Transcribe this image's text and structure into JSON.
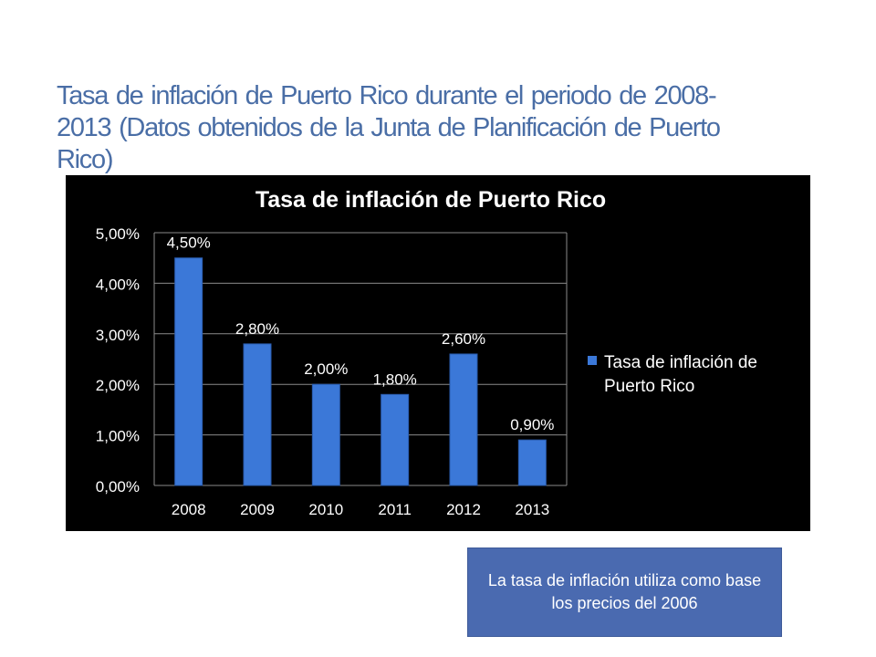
{
  "slide": {
    "title": "Tasa de inflación de Puerto Rico durante el periodo de 2008-2013 (Datos obtenidos de la Junta de Planificación de Puerto Rico)",
    "note": "La tasa de inflación utiliza como base los precios del 2006"
  },
  "colors": {
    "title": "#4a6ea6",
    "bar": "#3b78d8",
    "chart_background": "#000000",
    "chart_text": "#ffffff"
  },
  "chart_data": {
    "type": "bar",
    "title": "Tasa de inflación de Puerto Rico",
    "categories": [
      "2008",
      "2009",
      "2010",
      "2011",
      "2012",
      "2013"
    ],
    "series": [
      {
        "name": "Tasa de inflación de Puerto Rico",
        "values": [
          4.5,
          2.8,
          2.0,
          1.8,
          2.6,
          0.9
        ],
        "labels": [
          "4,50%",
          "2,80%",
          "2,00%",
          "1,80%",
          "2,60%",
          "0,90%"
        ]
      }
    ],
    "ylim": [
      0,
      5
    ],
    "yticks": [
      0,
      1,
      2,
      3,
      4,
      5
    ],
    "ytick_labels": [
      "0,00%",
      "1,00%",
      "2,00%",
      "3,00%",
      "4,00%",
      "5,00%"
    ],
    "legend_lines": [
      "Tasa de inflación de",
      "Puerto Rico"
    ],
    "legend_position": "right",
    "xlabel": "",
    "ylabel": ""
  }
}
